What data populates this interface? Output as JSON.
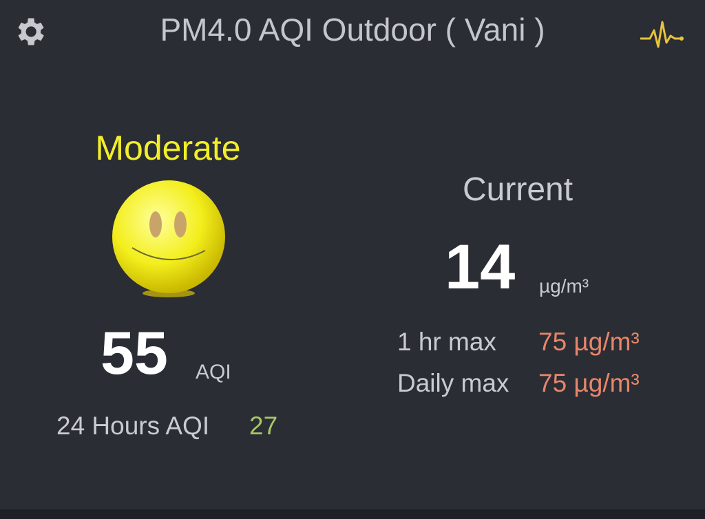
{
  "header": {
    "title": "PM4.0 AQI Outdoor ( Vani )",
    "settings_icon": "gear-icon",
    "activity_icon": "pulse-icon"
  },
  "aqi": {
    "status": "Moderate",
    "status_color": "#f2ef2a",
    "face_icon": "smiley-face-icon",
    "value": "55",
    "unit": "AQI",
    "h24_label": "24 Hours AQI",
    "h24_value": "27"
  },
  "current": {
    "label": "Current",
    "value": "14",
    "unit": "µg/m³",
    "rows": [
      {
        "label": "1 hr max",
        "value": "75 µg/m³"
      },
      {
        "label": "Daily max",
        "value": "75 µg/m³"
      }
    ]
  }
}
